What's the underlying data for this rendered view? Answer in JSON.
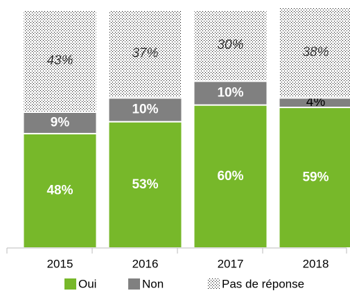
{
  "chart_data": {
    "type": "stacked-bar",
    "categories": [
      "2015",
      "2016",
      "2017",
      "2018"
    ],
    "series": [
      {
        "name": "Oui",
        "color": "#77b82a",
        "values": [
          48,
          53,
          60,
          59
        ],
        "value_labels": [
          "48%",
          "53%",
          "60%",
          "59%"
        ]
      },
      {
        "name": "Non",
        "color": "#808080",
        "values": [
          9,
          10,
          10,
          4
        ],
        "value_labels": [
          "9%",
          "10%",
          "10%",
          "4%"
        ]
      },
      {
        "name": "Pas de réponse",
        "color": "#000000",
        "pattern": "dots",
        "values": [
          43,
          37,
          30,
          38
        ],
        "value_labels": [
          "43%",
          "37%",
          "30%",
          "38%"
        ]
      }
    ],
    "ylim": [
      0,
      100
    ]
  }
}
